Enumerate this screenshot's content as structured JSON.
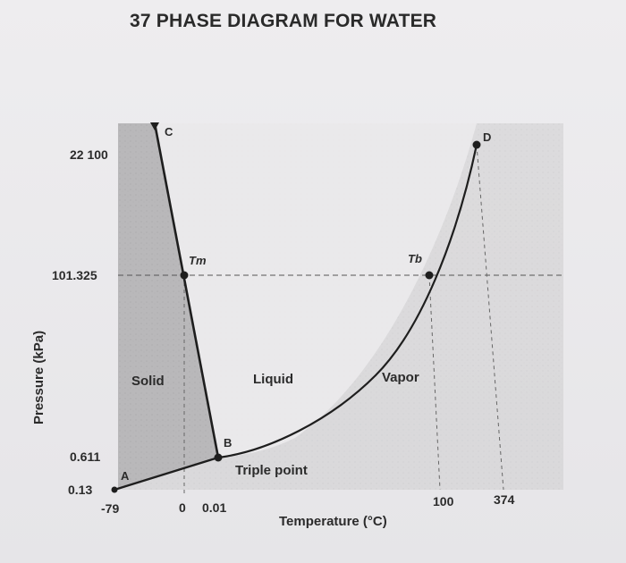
{
  "chart_data": {
    "type": "line",
    "title": "37  PHASE DIAGRAM FOR WATER",
    "xlabel": "Temperature (°C)",
    "ylabel": "Pressure (kPa)",
    "x_ticks": [
      "-79",
      "0",
      "0.01",
      "100",
      "374"
    ],
    "y_ticks": [
      "22 100",
      "101.325",
      "0.611",
      "0.13"
    ],
    "regions": [
      "Solid",
      "Liquid",
      "Vapor"
    ],
    "annotation": "Triple point",
    "points": [
      {
        "label": "A",
        "temperature": "-79",
        "pressure": "0.13"
      },
      {
        "label": "B",
        "temperature": "0.01",
        "pressure": "0.611"
      },
      {
        "label": "C",
        "temperature": "0",
        "pressure": "22 100"
      },
      {
        "label": "D",
        "temperature": "374",
        "pressure": "22 100"
      },
      {
        "label": "Tm",
        "temperature": "0",
        "pressure": "101.325"
      },
      {
        "label": "Tb",
        "temperature": "100",
        "pressure": "101.325"
      }
    ],
    "series": [
      {
        "name": "",
        "curve": "sublimation",
        "from": "A",
        "to": "B"
      },
      {
        "name": "",
        "curve": "melting",
        "from": "B",
        "to": "C"
      },
      {
        "name": "",
        "curve": "vaporization",
        "from": "B",
        "to": "D"
      }
    ],
    "scale": "schematic (not to scale)",
    "grid": false
  }
}
